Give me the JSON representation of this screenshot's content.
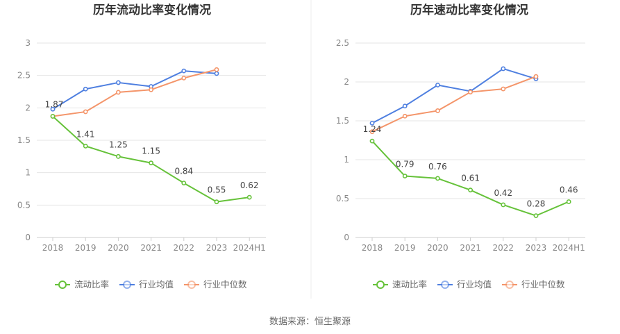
{
  "colors": {
    "current": "#66c23a",
    "avg": "#4e7fe0",
    "median": "#f4956a",
    "grid": "#e6e6e6",
    "divider": "#eeeeee"
  },
  "source": {
    "text": "数据来源：恒生聚源"
  },
  "chart_data": [
    {
      "type": "line",
      "title": "历年流动比率变化情况",
      "categories": [
        "2018",
        "2019",
        "2020",
        "2021",
        "2022",
        "2023",
        "2024H1"
      ],
      "ylim": [
        0,
        3
      ],
      "yticks": [
        0,
        0.5,
        1,
        1.5,
        2,
        2.5,
        3
      ],
      "ytick_labels": [
        "0",
        "0.5",
        "1",
        "1.5",
        "2",
        "2.5",
        "3"
      ],
      "series": [
        {
          "name": "流动比率",
          "color_key": "current",
          "values": [
            1.87,
            1.41,
            1.25,
            1.15,
            0.84,
            0.55,
            0.62
          ],
          "labels": [
            "1.87",
            "1.41",
            "1.25",
            "1.15",
            "0.84",
            "0.55",
            "0.62"
          ]
        },
        {
          "name": "行业均值",
          "color_key": "avg",
          "values": [
            1.98,
            2.29,
            2.39,
            2.33,
            2.57,
            2.53,
            null
          ]
        },
        {
          "name": "行业中位数",
          "color_key": "median",
          "values": [
            1.87,
            1.94,
            2.24,
            2.28,
            2.46,
            2.59,
            null
          ]
        }
      ]
    },
    {
      "type": "line",
      "title": "历年速动比率变化情况",
      "categories": [
        "2018",
        "2019",
        "2020",
        "2021",
        "2022",
        "2023",
        "2024H1"
      ],
      "ylim": [
        0,
        2.5
      ],
      "yticks": [
        0,
        0.5,
        1,
        1.5,
        2,
        2.5
      ],
      "ytick_labels": [
        "0",
        "0.5",
        "1",
        "1.5",
        "2",
        "2.5"
      ],
      "series": [
        {
          "name": "速动比率",
          "color_key": "current",
          "values": [
            1.24,
            0.79,
            0.76,
            0.61,
            0.42,
            0.28,
            0.46
          ],
          "labels": [
            "1.24",
            "0.79",
            "0.76",
            "0.61",
            "0.42",
            "0.28",
            "0.46"
          ]
        },
        {
          "name": "行业均值",
          "color_key": "avg",
          "values": [
            1.47,
            1.69,
            1.96,
            1.88,
            2.17,
            2.04,
            null
          ]
        },
        {
          "name": "行业中位数",
          "color_key": "median",
          "values": [
            1.36,
            1.56,
            1.63,
            1.87,
            1.91,
            2.07,
            null
          ]
        }
      ]
    }
  ]
}
